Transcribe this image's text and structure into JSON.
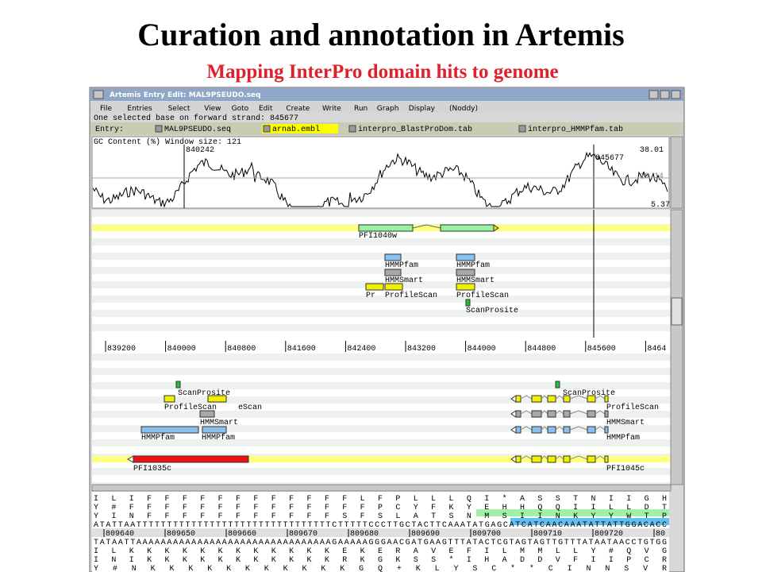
{
  "title": "Curation and annotation in Artemis",
  "subtitle": "Mapping InterPro domain hits to genome",
  "window": {
    "title": "Artemis Entry Edit: MAL9PSEUDO.seq",
    "menu": [
      "File",
      "Entries",
      "Select",
      "View",
      "Goto",
      "Edit",
      "Create",
      "Write",
      "Run",
      "Graph",
      "Display",
      "(Noddy)"
    ],
    "status": "One selected base on forward strand: 845677",
    "entry_label": "Entry:",
    "entries": [
      "MAL9PSEUDO.seq",
      "arnab.embl",
      "interpro_BlastProDom.tab",
      "interpro_HMMPfam.tab"
    ],
    "graph": {
      "label": "GC Content (%)   Window size: 121",
      "markers": [
        "840242",
        "845677"
      ],
      "scale": [
        "38.01",
        "19.14",
        "5.37"
      ]
    },
    "forward_features": {
      "gene": "PFI1040w",
      "hmmpfam": [
        "HMMPfam",
        "HMMPfam"
      ],
      "hmmsmart": [
        "HMMSmart",
        "HMMSmart"
      ],
      "profilescan": [
        "Pr",
        "ProfileScan",
        "ProfileScan"
      ],
      "scanprosite": "ScanProsite"
    },
    "ruler": [
      "839200",
      "840000",
      "840800",
      "841600",
      "842400",
      "843200",
      "844000",
      "844800",
      "845600",
      "8464"
    ],
    "reverse_features": {
      "left": [
        "ScanProsite",
        "ProfileScan",
        "eScan",
        "HMMSmart",
        "HMMPfam",
        "HMMPfam",
        "PFI1035c"
      ],
      "right": [
        "ScanProsite",
        "ProfileScan",
        "HMMSmart",
        "HMMPfam",
        "PFI1045c"
      ]
    },
    "sequence": {
      "top": [
        " I  L  I  F  F  F  F  F  F  F  F  F  F  F  F  L  F  P  L  L  L  Q  I  *  A  S  S  T  N  I  I  G  H",
        "  Y  #  F  F  F  F  F  F  F  F  F  F  F  F  F  F  P  C  Y  F  K  Y  E  H  H  Q  Q  I  I  L  L  D  T",
        "Y  I  N  F  F  F  F  F  F  F  F  F  F  F  S  F  S  L  A  T  S  N  M  S  I  I  N  K  Y  Y  W  T  P",
        "ATATTAATTTTTTTTTTTTTTTTTTTTTTTTTTTTTTTTCTTTTTCCCTTGCTACTTCAAATATGAGCATCATCAACAAATATTATTGGACACC"
      ],
      "ruler": [
        "809640",
        "809650",
        "809660",
        "809670",
        "809680",
        "809690",
        "809700",
        "809710",
        "809720",
        "80"
      ],
      "bottom": [
        "TATAATTAAAAAAAAAAAAAAAAAAAAAAAAAAAAAAAAGAAAAAGGGAACGATGAAGTTTATACTCGTAGTAGTTGTTTATAATAACCTGTGG",
        " I  L  K  K  K  K  K  K  K  K  K  K  K  K  E  K  E  R  A  V  E  F  I  L  M  M  L  L  Y  #  Q  V  G",
        "I  N  I  K  K  K  K  K  K  K  K  K  K  K  R  K  G  K  S  S  *  I  H  A  D  D  V  F  I  I  P  C  R",
        "  Y  #  N  K  K  K  K  K  K  K  K  K  K  K  G  Q  +  K  L  Y  S  C  *  *  C  I  N  N  S  V  R"
      ]
    }
  }
}
